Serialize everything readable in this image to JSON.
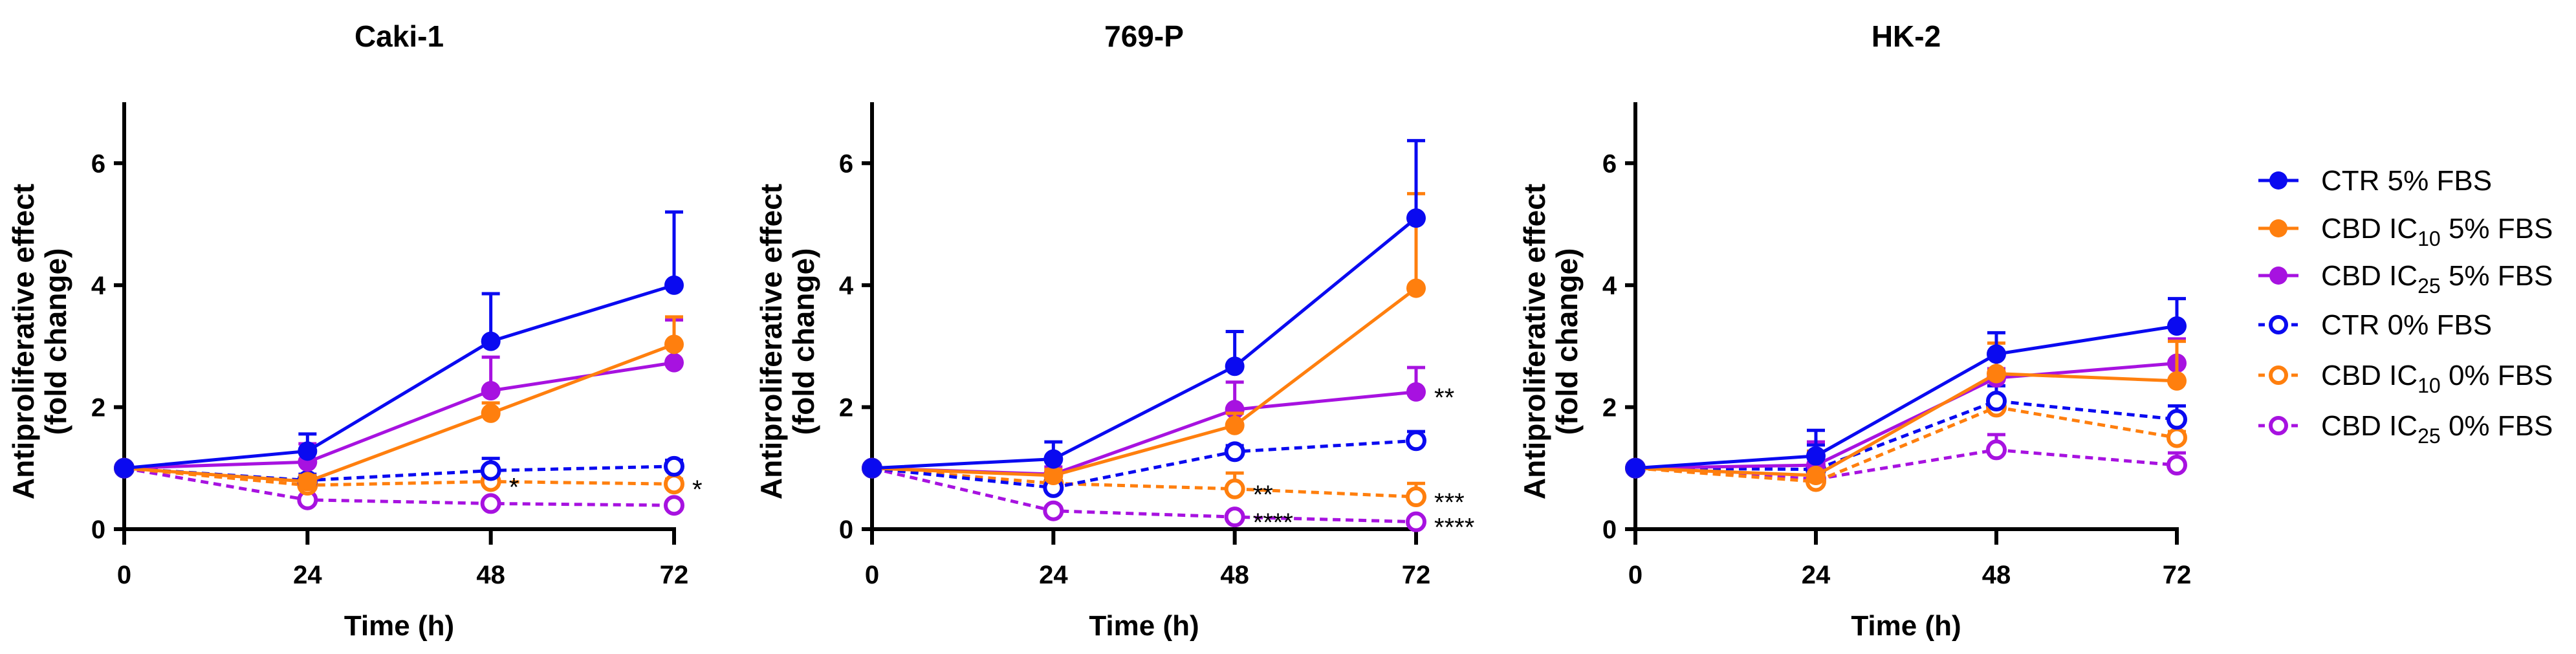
{
  "chart_data": {
    "type": "line",
    "x": [
      0,
      24,
      48,
      72
    ],
    "xlabel": "Time (h)",
    "ylabel": [
      "Antiproliferative effect",
      "(fold change)"
    ],
    "xticks": [
      "0",
      "24",
      "48",
      "72"
    ],
    "yticks": [
      "0",
      "2",
      "4",
      "6"
    ],
    "ylim": [
      0,
      7
    ],
    "legend_placement": "right",
    "legend": [
      {
        "pre": "CTR 5% FBS",
        "sub": "",
        "post": "",
        "color": "#0a0af0",
        "filled": true,
        "dashed": false
      },
      {
        "pre": "CBD IC",
        "sub": "10",
        "post": " 5% FBS",
        "color": "#ff7f0e",
        "filled": true,
        "dashed": false
      },
      {
        "pre": "CBD IC",
        "sub": "25",
        "post": " 5% FBS",
        "color": "#a712e0",
        "filled": true,
        "dashed": false
      },
      {
        "pre": "CTR 0% FBS",
        "sub": "",
        "post": "",
        "color": "#0a0af0",
        "filled": false,
        "dashed": true
      },
      {
        "pre": "CBD IC",
        "sub": "10",
        "post": " 0% FBS",
        "color": "#ff7f0e",
        "filled": false,
        "dashed": true
      },
      {
        "pre": "CBD IC",
        "sub": "25",
        "post": " 0% FBS",
        "color": "#a712e0",
        "filled": false,
        "dashed": true
      }
    ],
    "panels": [
      {
        "title": "Caki-1",
        "series": [
          {
            "values": [
              1,
              1.28,
              3.08,
              4.0
            ],
            "err": [
              0,
              0.28,
              0.78,
              1.2
            ]
          },
          {
            "values": [
              1,
              0.78,
              1.9,
              3.03
            ],
            "err": [
              0,
              0.1,
              0.17,
              0.45
            ]
          },
          {
            "values": [
              1,
              1.1,
              2.27,
              2.73
            ],
            "err": [
              0,
              0.3,
              0.55,
              0.7
            ]
          },
          {
            "values": [
              1,
              0.8,
              0.96,
              1.03
            ],
            "err": [
              0,
              0.1,
              0.2,
              0.1
            ]
          },
          {
            "values": [
              1,
              0.72,
              0.78,
              0.74
            ],
            "err": [
              0,
              0.08,
              0.1,
              0.08
            ]
          },
          {
            "values": [
              1,
              0.48,
              0.42,
              0.39
            ],
            "err": [
              0,
              0.06,
              0.06,
              0.06
            ]
          }
        ],
        "annotations": [
          {
            "series": 4,
            "point": 2,
            "text": "*"
          },
          {
            "series": 4,
            "point": 3,
            "text": "*"
          }
        ]
      },
      {
        "title": "769-P",
        "series": [
          {
            "values": [
              1,
              1.15,
              2.67,
              5.1
            ],
            "err": [
              0,
              0.28,
              0.57,
              1.27
            ]
          },
          {
            "values": [
              1,
              0.88,
              1.7,
              3.95
            ],
            "err": [
              0,
              0.1,
              0.2,
              1.55
            ]
          },
          {
            "values": [
              1,
              0.9,
              1.96,
              2.25
            ],
            "err": [
              0,
              0.12,
              0.45,
              0.4
            ]
          },
          {
            "values": [
              1,
              0.68,
              1.27,
              1.45
            ],
            "err": [
              0,
              0.15,
              0.1,
              0.15
            ]
          },
          {
            "values": [
              1,
              0.75,
              0.66,
              0.53
            ],
            "err": [
              0,
              0.2,
              0.26,
              0.22
            ]
          },
          {
            "values": [
              1,
              0.3,
              0.2,
              0.12
            ],
            "err": [
              0,
              0.06,
              0.05,
              0.04
            ]
          }
        ],
        "annotations": [
          {
            "series": 2,
            "point": 3,
            "text": "**"
          },
          {
            "series": 4,
            "point": 2,
            "text": "**"
          },
          {
            "series": 4,
            "point": 3,
            "text": "***"
          },
          {
            "series": 5,
            "point": 2,
            "text": "****"
          },
          {
            "series": 5,
            "point": 3,
            "text": "****"
          }
        ]
      },
      {
        "title": "HK-2",
        "series": [
          {
            "values": [
              1,
              1.2,
              2.87,
              3.33
            ],
            "err": [
              0,
              0.42,
              0.35,
              0.45
            ]
          },
          {
            "values": [
              1,
              0.88,
              2.55,
              2.43
            ],
            "err": [
              0,
              0.4,
              0.5,
              0.65
            ]
          },
          {
            "values": [
              1,
              1.05,
              2.48,
              2.72
            ],
            "err": [
              0,
              0.38,
              0.15,
              0.4
            ]
          },
          {
            "values": [
              1,
              0.98,
              2.1,
              1.8
            ],
            "err": [
              0,
              0.4,
              0.25,
              0.22
            ]
          },
          {
            "values": [
              1,
              0.78,
              2.0,
              1.5
            ],
            "err": [
              0,
              0.3,
              0.6,
              0.1
            ]
          },
          {
            "values": [
              1,
              0.82,
              1.3,
              1.05
            ],
            "err": [
              0,
              0.1,
              0.25,
              0.2
            ]
          }
        ],
        "annotations": []
      }
    ]
  }
}
